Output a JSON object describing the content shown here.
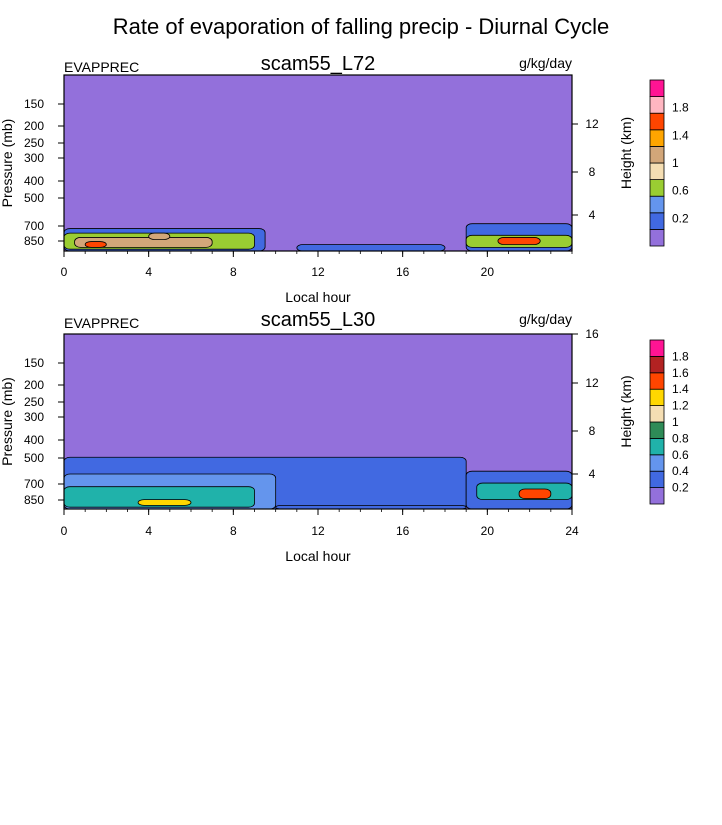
{
  "title": "Rate of evaporation of falling precip - Diurnal Cycle",
  "colors": {
    "background": "#9370DB",
    "levels_L72": [
      "#9370DB",
      "#4169E1",
      "#6495ED",
      "#9ACD32",
      "#F5DEB3",
      "#D2A679",
      "#FFA500",
      "#FF4500",
      "#FFB6C1",
      "#FF1493"
    ],
    "levels_L30": [
      "#9370DB",
      "#4169E1",
      "#6495ED",
      "#20B2AA",
      "#2E8B57",
      "#F5DEB3",
      "#FFD700",
      "#FF4500",
      "#B22222",
      "#FF1493"
    ]
  },
  "chart_data": [
    {
      "type": "heatmap",
      "title": "scam55_L72",
      "left_label": "EVAPPREC",
      "units": "g/kg/day",
      "xlabel": "Local hour",
      "ylabel": "Pressure (mb)",
      "y2label": "Height (km)",
      "xlim": [
        0,
        24
      ],
      "x_ticks": [
        "0",
        "4",
        "8",
        "12",
        "16",
        "20"
      ],
      "y_ticks": [
        "150",
        "200",
        "250",
        "300",
        "400",
        "500",
        "700",
        "850"
      ],
      "y2_ticks": [
        "12",
        "8",
        "4"
      ],
      "colorbar_labels": [
        "1.8",
        "1.4",
        "1",
        "0.6",
        "0.2"
      ],
      "regions": [
        {
          "x0": 0,
          "x1": 9.5,
          "p_top": 680,
          "p_bot": 900,
          "level": 1
        },
        {
          "x0": 0,
          "x1": 9,
          "p_top": 720,
          "p_bot": 880,
          "level": 3
        },
        {
          "x0": 0.5,
          "x1": 7,
          "p_top": 760,
          "p_bot": 860,
          "level": 5
        },
        {
          "x0": 1,
          "x1": 2,
          "p_top": 800,
          "p_bot": 860,
          "level": 7
        },
        {
          "x0": 4,
          "x1": 5,
          "p_top": 720,
          "p_bot": 780,
          "level": 5
        },
        {
          "x0": 19,
          "x1": 24,
          "p_top": 640,
          "p_bot": 900,
          "level": 1
        },
        {
          "x0": 19,
          "x1": 24,
          "p_top": 740,
          "p_bot": 860,
          "level": 3
        },
        {
          "x0": 20.5,
          "x1": 22.5,
          "p_top": 760,
          "p_bot": 830,
          "level": 7
        },
        {
          "x0": 11,
          "x1": 18,
          "p_top": 830,
          "p_bot": 900,
          "level": 1
        }
      ]
    },
    {
      "type": "heatmap",
      "title": "scam55_L30",
      "left_label": "EVAPPREC",
      "units": "g/kg/day",
      "xlabel": "Local hour",
      "ylabel": "Pressure (mb)",
      "y2label": "Height (km)",
      "xlim": [
        0,
        24
      ],
      "x_ticks": [
        "0",
        "4",
        "8",
        "12",
        "16",
        "20",
        "24"
      ],
      "y_ticks": [
        "150",
        "200",
        "250",
        "300",
        "400",
        "500",
        "700",
        "850"
      ],
      "y2_ticks": [
        "16",
        "12",
        "8",
        "4"
      ],
      "colorbar_labels": [
        "1.8",
        "1.6",
        "1.4",
        "1.2",
        "1",
        "0.8",
        "0.6",
        "0.4",
        "0.2"
      ],
      "regions": [
        {
          "x0": 0,
          "x1": 19,
          "p_top": 470,
          "p_bot": 900,
          "level": 1
        },
        {
          "x0": 0,
          "x1": 10,
          "p_top": 580,
          "p_bot": 900,
          "level": 2
        },
        {
          "x0": 0,
          "x1": 9,
          "p_top": 680,
          "p_bot": 880,
          "level": 3
        },
        {
          "x0": 3.5,
          "x1": 6,
          "p_top": 800,
          "p_bot": 860,
          "level": 6
        },
        {
          "x0": 19,
          "x1": 24,
          "p_top": 560,
          "p_bot": 900,
          "level": 1
        },
        {
          "x0": 19.5,
          "x1": 24,
          "p_top": 650,
          "p_bot": 800,
          "level": 3
        },
        {
          "x0": 21.5,
          "x1": 23,
          "p_top": 700,
          "p_bot": 790,
          "level": 7
        },
        {
          "x0": 10,
          "x1": 19,
          "p_top": 860,
          "p_bot": 900,
          "level": 1
        }
      ]
    }
  ]
}
